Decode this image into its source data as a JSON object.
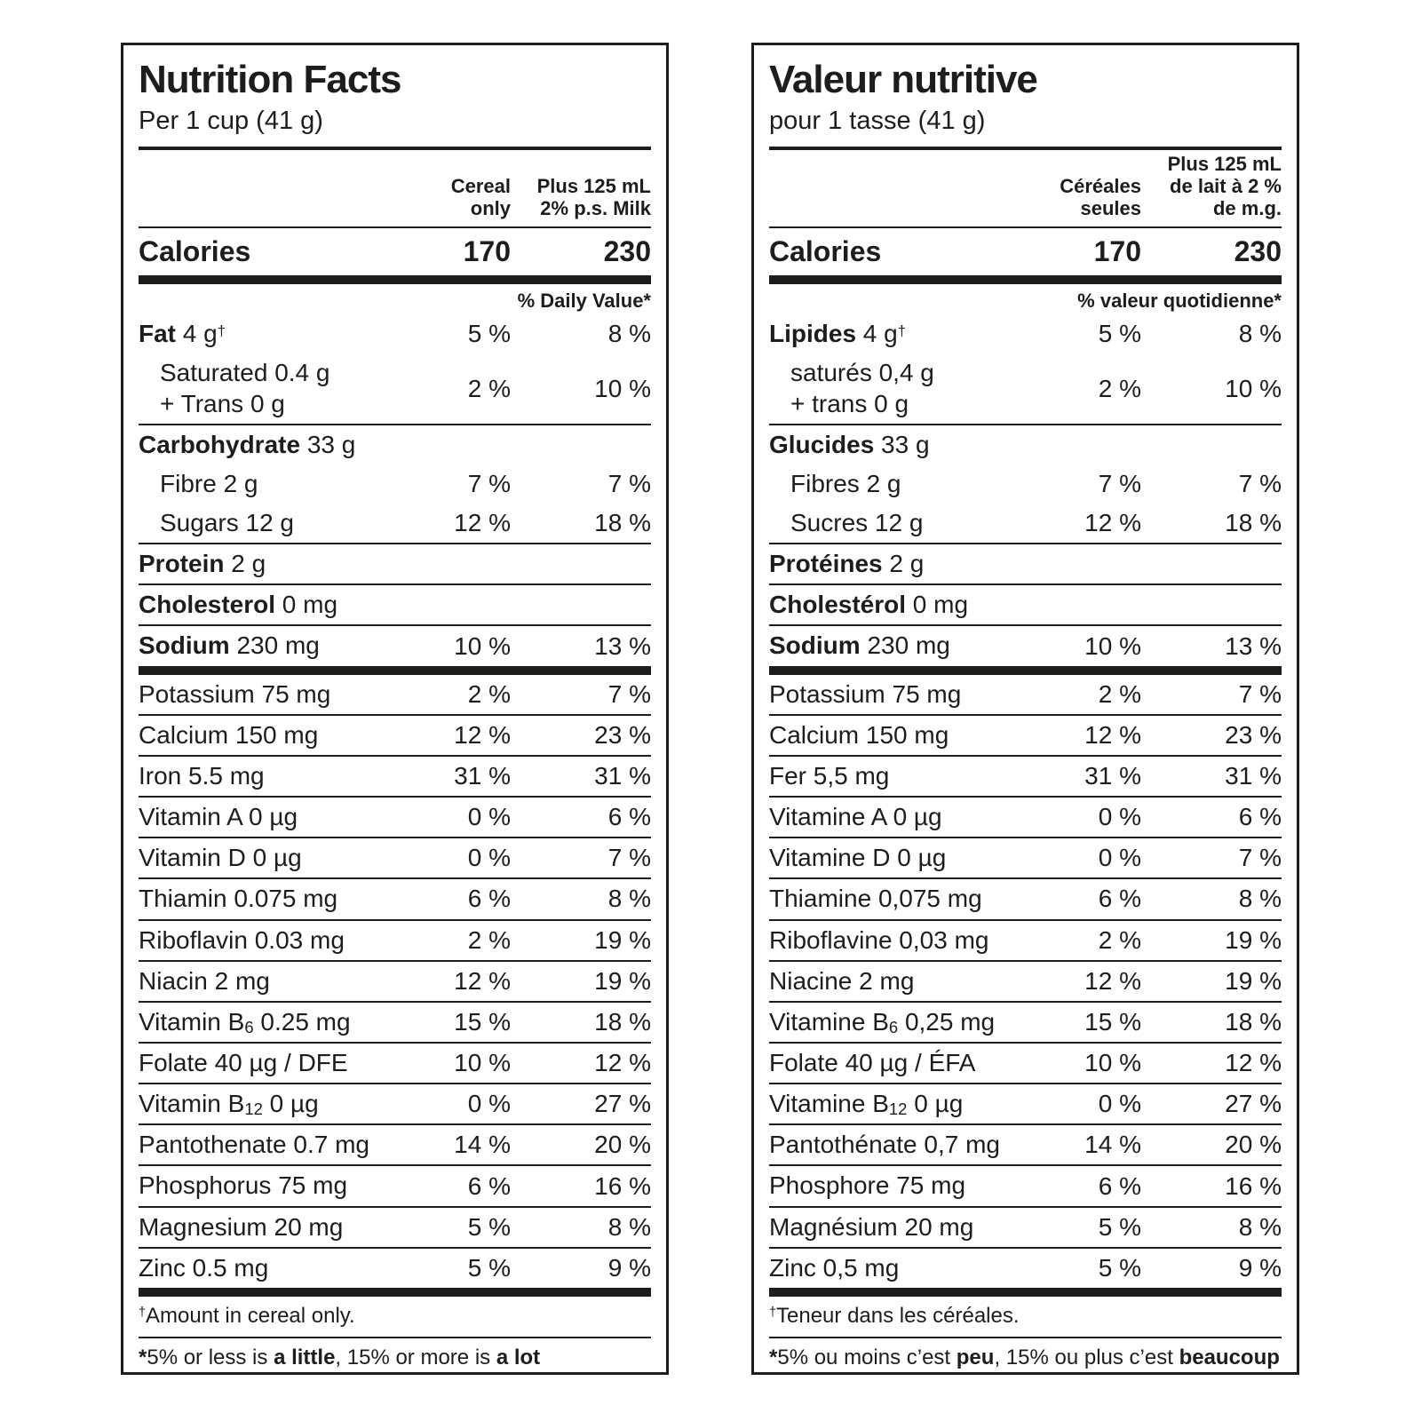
{
  "panels": [
    {
      "lang": "en",
      "title": "Nutrition Facts",
      "serving": "Per 1 cup (41 g)",
      "col1_header": "Cereal\nonly",
      "col2_header": "Plus 125 mL\n2% p.s. Milk",
      "calories": {
        "label": "Calories",
        "cereal": "170",
        "with_milk": "230"
      },
      "dv_header": "% Daily Value*",
      "rows": [
        {
          "lines": [
            [
              {
                "t": "Fat",
                "b": true
              },
              {
                "t": " 4 g"
              },
              {
                "t": "†",
                "sup": true
              }
            ]
          ],
          "v1": "5 %",
          "v2": "8 %",
          "sep": "none"
        },
        {
          "indent": true,
          "lines": [
            [
              {
                "t": "Saturated 0.4 g"
              }
            ],
            [
              {
                "t": "+ Trans 0 g"
              }
            ]
          ],
          "v1": "2 %",
          "v2": "10 %",
          "sep": "thin"
        },
        {
          "lines": [
            [
              {
                "t": "Carbohydrate",
                "b": true
              },
              {
                "t": " 33 g"
              }
            ]
          ],
          "v1": "",
          "v2": "",
          "sep": "none"
        },
        {
          "indent": true,
          "lines": [
            [
              {
                "t": "Fibre 2 g"
              }
            ]
          ],
          "v1": "7 %",
          "v2": "7 %",
          "sep": "none"
        },
        {
          "indent": true,
          "lines": [
            [
              {
                "t": "Sugars 12 g"
              }
            ]
          ],
          "v1": "12 %",
          "v2": "18 %",
          "sep": "thin"
        },
        {
          "lines": [
            [
              {
                "t": "Protein",
                "b": true
              },
              {
                "t": " 2 g"
              }
            ]
          ],
          "v1": "",
          "v2": "",
          "sep": "thin"
        },
        {
          "lines": [
            [
              {
                "t": "Cholesterol",
                "b": true
              },
              {
                "t": " 0 mg"
              }
            ]
          ],
          "v1": "",
          "v2": "",
          "sep": "thin"
        },
        {
          "lines": [
            [
              {
                "t": "Sodium",
                "b": true
              },
              {
                "t": " 230 mg"
              }
            ]
          ],
          "v1": "10 %",
          "v2": "13 %",
          "sep": "thick"
        },
        {
          "lines": [
            [
              {
                "t": "Potassium 75 mg"
              }
            ]
          ],
          "v1": "2 %",
          "v2": "7 %",
          "sep": "thin"
        },
        {
          "lines": [
            [
              {
                "t": "Calcium 150 mg"
              }
            ]
          ],
          "v1": "12 %",
          "v2": "23 %",
          "sep": "thin"
        },
        {
          "lines": [
            [
              {
                "t": "Iron 5.5 mg"
              }
            ]
          ],
          "v1": "31 %",
          "v2": "31 %",
          "sep": "thin"
        },
        {
          "lines": [
            [
              {
                "t": "Vitamin A 0 µg"
              }
            ]
          ],
          "v1": "0 %",
          "v2": "6 %",
          "sep": "thin"
        },
        {
          "lines": [
            [
              {
                "t": "Vitamin D 0 µg"
              }
            ]
          ],
          "v1": "0 %",
          "v2": "7 %",
          "sep": "thin"
        },
        {
          "lines": [
            [
              {
                "t": "Thiamin 0.075 mg"
              }
            ]
          ],
          "v1": "6 %",
          "v2": "8 %",
          "sep": "thin"
        },
        {
          "lines": [
            [
              {
                "t": "Riboflavin 0.03 mg"
              }
            ]
          ],
          "v1": "2 %",
          "v2": "19 %",
          "sep": "thin"
        },
        {
          "lines": [
            [
              {
                "t": "Niacin 2 mg"
              }
            ]
          ],
          "v1": "12 %",
          "v2": "19 %",
          "sep": "thin"
        },
        {
          "lines": [
            [
              {
                "t": "Vitamin B"
              },
              {
                "t": "6",
                "sub": true
              },
              {
                "t": " 0.25 mg"
              }
            ]
          ],
          "v1": "15 %",
          "v2": "18 %",
          "sep": "thin"
        },
        {
          "lines": [
            [
              {
                "t": "Folate 40 µg / DFE"
              }
            ]
          ],
          "v1": "10 %",
          "v2": "12 %",
          "sep": "thin"
        },
        {
          "lines": [
            [
              {
                "t": "Vitamin B"
              },
              {
                "t": "12",
                "sub": true
              },
              {
                "t": " 0 µg"
              }
            ]
          ],
          "v1": "0 %",
          "v2": "27 %",
          "sep": "thin"
        },
        {
          "lines": [
            [
              {
                "t": "Pantothenate 0.7 mg"
              }
            ]
          ],
          "v1": "14 %",
          "v2": "20 %",
          "sep": "thin"
        },
        {
          "lines": [
            [
              {
                "t": "Phosphorus 75 mg"
              }
            ]
          ],
          "v1": "6 %",
          "v2": "16 %",
          "sep": "thin"
        },
        {
          "lines": [
            [
              {
                "t": "Magnesium 20 mg"
              }
            ]
          ],
          "v1": "5 %",
          "v2": "8 %",
          "sep": "thin"
        },
        {
          "lines": [
            [
              {
                "t": "Zinc 0.5 mg"
              }
            ]
          ],
          "v1": "5 %",
          "v2": "9 %",
          "sep": "thick"
        }
      ],
      "footnote_dagger": [
        {
          "t": "†",
          "sup": true
        },
        {
          "t": "Amount in cereal only."
        }
      ],
      "footnote_star": [
        {
          "t": "*",
          "b": true
        },
        {
          "t": "5% or less is "
        },
        {
          "t": "a little",
          "b": true
        },
        {
          "t": ", 15% or more is "
        },
        {
          "t": "a lot",
          "b": true
        }
      ]
    },
    {
      "lang": "fr",
      "title": "Valeur nutritive",
      "serving": "pour 1 tasse (41 g)",
      "col1_header": "Céréales\nseules",
      "col2_header": "Plus 125 mL\nde lait à 2 %\nde m.g.",
      "calories": {
        "label": "Calories",
        "cereal": "170",
        "with_milk": "230"
      },
      "dv_header": "% valeur quotidienne*",
      "rows": [
        {
          "lines": [
            [
              {
                "t": "Lipides",
                "b": true
              },
              {
                "t": " 4 g"
              },
              {
                "t": "†",
                "sup": true
              }
            ]
          ],
          "v1": "5 %",
          "v2": "8 %",
          "sep": "none"
        },
        {
          "indent": true,
          "lines": [
            [
              {
                "t": "saturés 0,4 g"
              }
            ],
            [
              {
                "t": "+ trans 0 g"
              }
            ]
          ],
          "v1": "2 %",
          "v2": "10 %",
          "sep": "thin"
        },
        {
          "lines": [
            [
              {
                "t": "Glucides",
                "b": true
              },
              {
                "t": " 33 g"
              }
            ]
          ],
          "v1": "",
          "v2": "",
          "sep": "none"
        },
        {
          "indent": true,
          "lines": [
            [
              {
                "t": "Fibres 2 g"
              }
            ]
          ],
          "v1": "7 %",
          "v2": "7 %",
          "sep": "none"
        },
        {
          "indent": true,
          "lines": [
            [
              {
                "t": "Sucres 12 g"
              }
            ]
          ],
          "v1": "12 %",
          "v2": "18 %",
          "sep": "thin"
        },
        {
          "lines": [
            [
              {
                "t": "Protéines",
                "b": true
              },
              {
                "t": " 2 g"
              }
            ]
          ],
          "v1": "",
          "v2": "",
          "sep": "thin"
        },
        {
          "lines": [
            [
              {
                "t": "Cholestérol",
                "b": true
              },
              {
                "t": " 0 mg"
              }
            ]
          ],
          "v1": "",
          "v2": "",
          "sep": "thin"
        },
        {
          "lines": [
            [
              {
                "t": "Sodium",
                "b": true
              },
              {
                "t": " 230 mg"
              }
            ]
          ],
          "v1": "10 %",
          "v2": "13 %",
          "sep": "thick"
        },
        {
          "lines": [
            [
              {
                "t": "Potassium 75 mg"
              }
            ]
          ],
          "v1": "2 %",
          "v2": "7 %",
          "sep": "thin"
        },
        {
          "lines": [
            [
              {
                "t": "Calcium 150 mg"
              }
            ]
          ],
          "v1": "12 %",
          "v2": "23 %",
          "sep": "thin"
        },
        {
          "lines": [
            [
              {
                "t": "Fer 5,5 mg"
              }
            ]
          ],
          "v1": "31 %",
          "v2": "31 %",
          "sep": "thin"
        },
        {
          "lines": [
            [
              {
                "t": "Vitamine A 0 µg"
              }
            ]
          ],
          "v1": "0 %",
          "v2": "6 %",
          "sep": "thin"
        },
        {
          "lines": [
            [
              {
                "t": "Vitamine D 0 µg"
              }
            ]
          ],
          "v1": "0 %",
          "v2": "7 %",
          "sep": "thin"
        },
        {
          "lines": [
            [
              {
                "t": "Thiamine 0,075 mg"
              }
            ]
          ],
          "v1": "6 %",
          "v2": "8 %",
          "sep": "thin"
        },
        {
          "lines": [
            [
              {
                "t": "Riboflavine 0,03 mg"
              }
            ]
          ],
          "v1": "2 %",
          "v2": "19 %",
          "sep": "thin"
        },
        {
          "lines": [
            [
              {
                "t": "Niacine 2 mg"
              }
            ]
          ],
          "v1": "12 %",
          "v2": "19 %",
          "sep": "thin"
        },
        {
          "lines": [
            [
              {
                "t": "Vitamine B"
              },
              {
                "t": "6",
                "sub": true
              },
              {
                "t": " 0,25 mg"
              }
            ]
          ],
          "v1": "15 %",
          "v2": "18 %",
          "sep": "thin"
        },
        {
          "lines": [
            [
              {
                "t": "Folate 40 µg / ÉFA"
              }
            ]
          ],
          "v1": "10 %",
          "v2": "12 %",
          "sep": "thin"
        },
        {
          "lines": [
            [
              {
                "t": "Vitamine B"
              },
              {
                "t": "12",
                "sub": true
              },
              {
                "t": " 0 µg"
              }
            ]
          ],
          "v1": "0 %",
          "v2": "27 %",
          "sep": "thin"
        },
        {
          "lines": [
            [
              {
                "t": "Pantothénate 0,7 mg"
              }
            ]
          ],
          "v1": "14 %",
          "v2": "20 %",
          "sep": "thin"
        },
        {
          "lines": [
            [
              {
                "t": "Phosphore 75 mg"
              }
            ]
          ],
          "v1": "6 %",
          "v2": "16 %",
          "sep": "thin"
        },
        {
          "lines": [
            [
              {
                "t": "Magnésium 20 mg"
              }
            ]
          ],
          "v1": "5 %",
          "v2": "8 %",
          "sep": "thin"
        },
        {
          "lines": [
            [
              {
                "t": "Zinc 0,5 mg"
              }
            ]
          ],
          "v1": "5 %",
          "v2": "9 %",
          "sep": "thick"
        }
      ],
      "footnote_dagger": [
        {
          "t": "†",
          "sup": true
        },
        {
          "t": "Teneur dans les céréales."
        }
      ],
      "footnote_star": [
        {
          "t": "*",
          "b": true
        },
        {
          "t": "5% ou moins c’est "
        },
        {
          "t": "peu",
          "b": true
        },
        {
          "t": ", 15% ou plus c’est "
        },
        {
          "t": "beaucoup",
          "b": true
        }
      ]
    }
  ]
}
